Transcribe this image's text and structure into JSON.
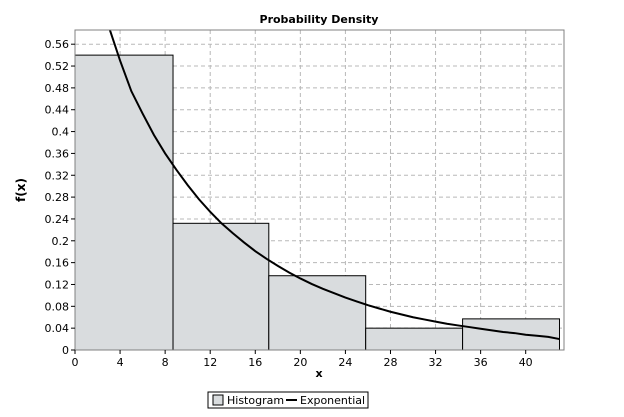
{
  "chart_data": {
    "type": "bar",
    "title": "Probability Density",
    "xlabel": "x",
    "ylabel": "f(x)",
    "xlim": [
      0,
      43.4
    ],
    "ylim": [
      0,
      0.586
    ],
    "x_ticks": [
      0,
      4,
      8,
      12,
      16,
      20,
      24,
      28,
      32,
      36,
      40
    ],
    "y_ticks": [
      0,
      0.04,
      0.08,
      0.12,
      0.16,
      0.2,
      0.24,
      0.28,
      0.32,
      0.36,
      0.4,
      0.44,
      0.48,
      0.52,
      0.56
    ],
    "x_tick_labels": [
      "0",
      "4",
      "8",
      "12",
      "16",
      "20",
      "24",
      "28",
      "32",
      "36",
      "40"
    ],
    "y_tick_labels": [
      "0",
      "0.04",
      "0.08",
      "0.12",
      "0.16",
      "0.2",
      "0.24",
      "0.28",
      "0.32",
      "0.36",
      "0.4",
      "0.44",
      "0.48",
      "0.52",
      "0.56"
    ],
    "grid": true,
    "legend_position": "bottom-center",
    "series": [
      {
        "name": "Histogram",
        "kind": "histogram",
        "bins": [
          {
            "x0": 0.0,
            "x1": 8.7,
            "value": 0.54
          },
          {
            "x0": 8.7,
            "x1": 17.2,
            "value": 0.232
          },
          {
            "x0": 17.2,
            "x1": 25.8,
            "value": 0.136
          },
          {
            "x0": 25.8,
            "x1": 34.4,
            "value": 0.04
          },
          {
            "x0": 34.4,
            "x1": 43.0,
            "value": 0.057
          }
        ],
        "fill": "#d9dcde",
        "stroke": "#000000"
      },
      {
        "name": "Exponential",
        "kind": "line",
        "x": [
          3.0,
          4.0,
          5.0,
          6.0,
          7.0,
          8.0,
          9.0,
          10.0,
          11.0,
          12.0,
          13.0,
          14.0,
          15.0,
          16.0,
          17.0,
          18.0,
          19.0,
          20.0,
          21.0,
          22.0,
          23.0,
          24.0,
          25.0,
          26.0,
          27.0,
          28.0,
          29.0,
          30.0,
          31.0,
          32.0,
          33.0,
          34.0,
          35.0,
          36.0,
          37.0,
          38.0,
          39.0,
          40.0,
          41.0,
          42.0,
          43.0
        ],
        "y": [
          0.592,
          0.53,
          0.474,
          0.433,
          0.394,
          0.36,
          0.33,
          0.302,
          0.276,
          0.253,
          0.232,
          0.214,
          0.197,
          0.181,
          0.167,
          0.154,
          0.142,
          0.131,
          0.121,
          0.112,
          0.104,
          0.096,
          0.089,
          0.082,
          0.076,
          0.07,
          0.065,
          0.06,
          0.056,
          0.052,
          0.048,
          0.045,
          0.042,
          0.039,
          0.036,
          0.033,
          0.031,
          0.028,
          0.026,
          0.024,
          0.02
        ],
        "color": "#000000"
      }
    ]
  }
}
